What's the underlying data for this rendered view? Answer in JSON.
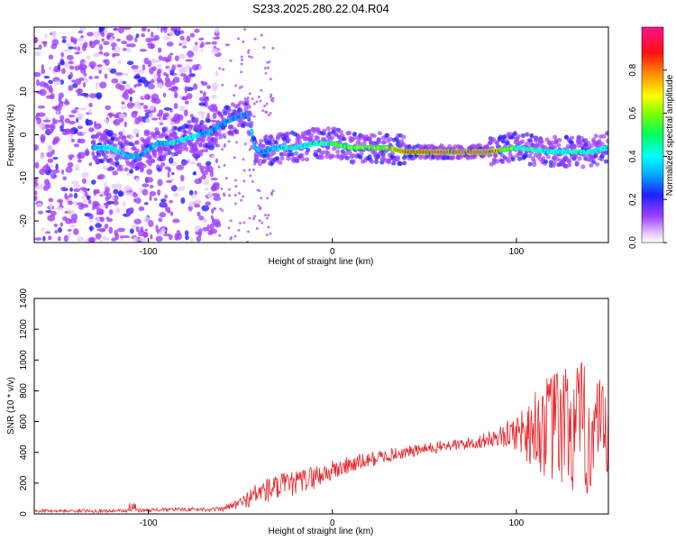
{
  "title": "S233.2025.280.22.04.R04",
  "chart_data": [
    {
      "type": "heatmap",
      "xlabel": "Height of straight line (km)",
      "ylabel": "Frequency (Hz)",
      "xlim": [
        -162,
        150
      ],
      "ylim": [
        -25,
        25
      ],
      "xticks": [
        -100,
        0,
        100
      ],
      "yticks": [
        -20,
        -10,
        0,
        10,
        20
      ],
      "colorbar": {
        "label": "Normalized spectral amplitude",
        "range": [
          0,
          1
        ],
        "ticks": [
          "0.0",
          "0.2",
          "0.4",
          "0.6",
          "0.8"
        ]
      },
      "ridge": {
        "x": [
          -128,
          -120,
          -112,
          -105,
          -95,
          -88,
          -80,
          -72,
          -65,
          -58,
          -52,
          -46,
          -42,
          -38,
          -30,
          -20,
          -10,
          0,
          10,
          20,
          30,
          40,
          60,
          85,
          100,
          120,
          140,
          150
        ],
        "freq": [
          -3,
          -3,
          -5,
          -5,
          -2,
          -2,
          -1,
          0,
          1,
          3,
          4,
          5,
          -3,
          -4,
          -3,
          -3,
          -2,
          -2,
          -3,
          -3,
          -3,
          -4,
          -4,
          -4,
          -3,
          -4,
          -4,
          -3
        ],
        "amplitude": [
          0.3,
          0.35,
          0.3,
          0.25,
          0.3,
          0.3,
          0.35,
          0.3,
          0.3,
          0.25,
          0.2,
          0.2,
          0.3,
          0.25,
          0.3,
          0.35,
          0.45,
          0.5,
          0.55,
          0.65,
          0.7,
          0.85,
          0.9,
          0.9,
          0.5,
          0.4,
          0.4,
          0.35
        ]
      }
    },
    {
      "type": "line",
      "xlabel": "Height of straight line (km)",
      "ylabel": "SNR (10 * v/v)",
      "xlim": [
        -162,
        150
      ],
      "ylim": [
        0,
        1400
      ],
      "xticks": [
        -100,
        0,
        100
      ],
      "yticks": [
        0,
        200,
        400,
        600,
        800,
        1000,
        1200,
        1400
      ],
      "color": "#e8252a",
      "envelope": {
        "x": [
          -162,
          -120,
          -100,
          -80,
          -60,
          -50,
          -40,
          -30,
          -20,
          -10,
          0,
          10,
          20,
          30,
          40,
          50,
          60,
          70,
          80,
          90,
          100,
          105,
          110,
          115,
          120,
          125,
          130,
          135,
          140,
          145,
          150
        ],
        "mean": [
          20,
          20,
          25,
          30,
          30,
          70,
          140,
          170,
          200,
          240,
          280,
          320,
          350,
          380,
          400,
          420,
          440,
          450,
          470,
          500,
          530,
          540,
          550,
          560,
          560,
          560,
          560,
          540,
          520,
          500,
          480
        ],
        "spread": [
          10,
          10,
          12,
          12,
          15,
          40,
          80,
          90,
          80,
          80,
          70,
          60,
          50,
          45,
          40,
          40,
          40,
          40,
          45,
          60,
          120,
          200,
          260,
          320,
          380,
          420,
          460,
          460,
          430,
          380,
          320
        ]
      }
    }
  ]
}
